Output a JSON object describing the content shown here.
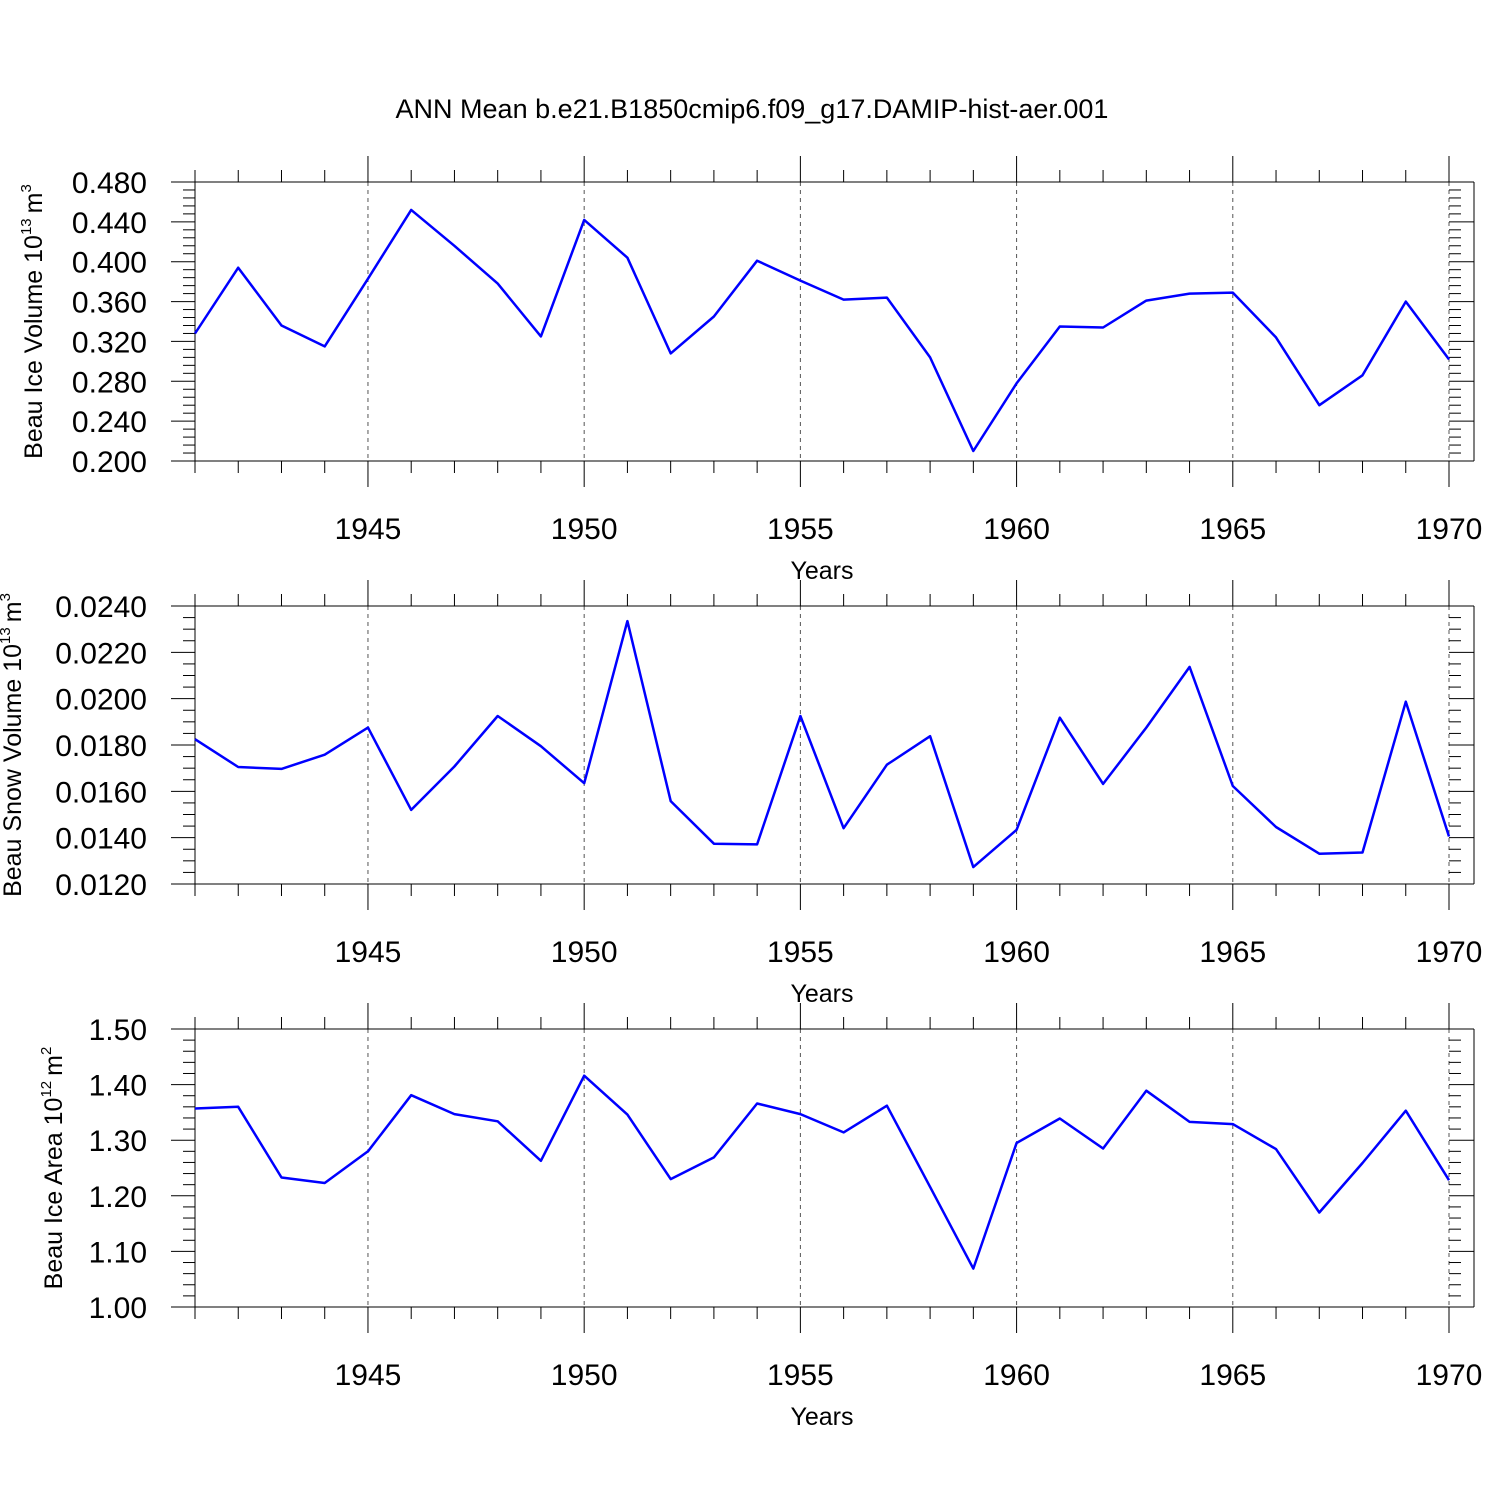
{
  "title": "ANN Mean b.e21.B1850cmip6.f09_g17.DAMIP-hist-aer.001",
  "chart_data": [
    {
      "type": "line",
      "xlabel": "Years",
      "ylabel": "Beau Ice Volume 10",
      "ylabel_exp": "13",
      "ylabel_unit": "m",
      "ylabel_unit_exp": "3",
      "xlim": [
        1941,
        1970
      ],
      "ylim": [
        0.2,
        0.48
      ],
      "yticks": [
        "0.200",
        "0.240",
        "0.280",
        "0.320",
        "0.360",
        "0.400",
        "0.440",
        "0.480"
      ],
      "xticks": [
        "1945",
        "1950",
        "1955",
        "1960",
        "1965",
        "1970"
      ],
      "grid": "vertical dashed at major x ticks",
      "color": "#0000ff",
      "x": [
        1941,
        1942,
        1943,
        1944,
        1945,
        1946,
        1947,
        1948,
        1949,
        1950,
        1951,
        1952,
        1953,
        1954,
        1955,
        1956,
        1957,
        1958,
        1959,
        1960,
        1961,
        1962,
        1963,
        1964,
        1965,
        1966,
        1967,
        1968,
        1969,
        1970
      ],
      "y": [
        0.328,
        0.394,
        0.336,
        0.315,
        0.383,
        0.452,
        0.416,
        0.378,
        0.325,
        0.442,
        0.404,
        0.308,
        0.345,
        0.401,
        0.381,
        0.362,
        0.364,
        0.304,
        0.21,
        0.278,
        0.335,
        0.334,
        0.361,
        0.368,
        0.369,
        0.324,
        0.256,
        0.286,
        0.36,
        0.302
      ]
    },
    {
      "type": "line",
      "xlabel": "Years",
      "ylabel": "Beau Snow Volume 10",
      "ylabel_exp": "13",
      "ylabel_unit": "m",
      "ylabel_unit_exp": "3",
      "xlim": [
        1941,
        1970
      ],
      "ylim": [
        0.012,
        0.024
      ],
      "yticks": [
        "0.0120",
        "0.0140",
        "0.0160",
        "0.0180",
        "0.0200",
        "0.0220",
        "0.0240"
      ],
      "xticks": [
        "1945",
        "1950",
        "1955",
        "1960",
        "1965",
        "1970"
      ],
      "grid": "vertical dashed at major x ticks",
      "color": "#0000ff",
      "x": [
        1941,
        1942,
        1943,
        1944,
        1945,
        1946,
        1947,
        1948,
        1949,
        1950,
        1951,
        1952,
        1953,
        1954,
        1955,
        1956,
        1957,
        1958,
        1959,
        1960,
        1961,
        1962,
        1963,
        1964,
        1965,
        1966,
        1967,
        1968,
        1969,
        1970
      ],
      "y": [
        0.01825,
        0.01705,
        0.01697,
        0.01758,
        0.01875,
        0.0152,
        0.01707,
        0.01925,
        0.01795,
        0.01635,
        0.02335,
        0.01558,
        0.01374,
        0.01371,
        0.01925,
        0.01441,
        0.01715,
        0.01838,
        0.01273,
        0.01434,
        0.01918,
        0.01632,
        0.01875,
        0.02137,
        0.01623,
        0.01446,
        0.01331,
        0.01336,
        0.01987,
        0.01405
      ]
    },
    {
      "type": "line",
      "xlabel": "Years",
      "ylabel": "Beau Ice Area 10",
      "ylabel_exp": "12",
      "ylabel_unit": "m",
      "ylabel_unit_exp": "2",
      "xlim": [
        1941,
        1970
      ],
      "ylim": [
        1.0,
        1.5
      ],
      "yticks": [
        "1.00",
        "1.10",
        "1.20",
        "1.30",
        "1.40",
        "1.50"
      ],
      "xticks": [
        "1945",
        "1950",
        "1955",
        "1960",
        "1965",
        "1970"
      ],
      "grid": "vertical dashed at major x ticks",
      "color": "#0000ff",
      "x": [
        1941,
        1942,
        1943,
        1944,
        1945,
        1946,
        1947,
        1948,
        1949,
        1950,
        1951,
        1952,
        1953,
        1954,
        1955,
        1956,
        1957,
        1958,
        1959,
        1960,
        1961,
        1962,
        1963,
        1964,
        1965,
        1966,
        1967,
        1968,
        1969,
        1970
      ],
      "y": [
        1.357,
        1.36,
        1.233,
        1.223,
        1.28,
        1.381,
        1.347,
        1.334,
        1.263,
        1.416,
        1.346,
        1.23,
        1.269,
        1.366,
        1.347,
        1.314,
        1.362,
        1.216,
        1.069,
        1.295,
        1.339,
        1.285,
        1.389,
        1.333,
        1.329,
        1.284,
        1.17,
        1.259,
        1.353,
        1.228
      ]
    }
  ]
}
